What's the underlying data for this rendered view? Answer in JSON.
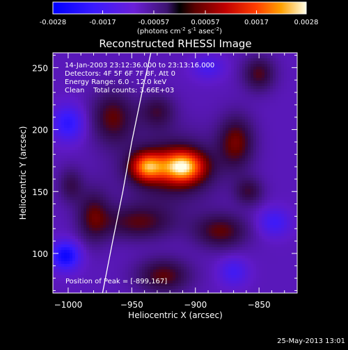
{
  "colorbar": {
    "ticks": [
      "-0.0028",
      "-0.0017",
      "-0.00057",
      "0.00057",
      "0.0017",
      "0.0028"
    ],
    "unit_prefix": "(photons cm",
    "unit_exp1": "-2",
    "unit_mid": " s",
    "unit_exp2": "-1",
    "unit_mid2": " asec",
    "unit_exp3": "-2",
    "unit_suffix": ")",
    "range": [
      -0.0028,
      0.0028
    ]
  },
  "chart_data": {
    "type": "heatmap",
    "title": "Reconstructed RHESSI Image",
    "xlabel": "Heliocentric X (arcsec)",
    "ylabel": "Heliocentric Y (arcsec)",
    "xlim": [
      -1012,
      -820
    ],
    "ylim": [
      68,
      262
    ],
    "x_ticks": [
      -1000,
      -950,
      -900,
      -850
    ],
    "y_ticks": [
      100,
      150,
      200,
      250
    ],
    "x_tick_labels": [
      "−1000",
      "−950",
      "−900",
      "−850"
    ],
    "y_tick_labels": [
      "100",
      "150",
      "200",
      "250"
    ],
    "peak": [
      -899,
      167
    ],
    "annotations": [
      "14-Jan-2003 23:12:36.000 to 23:13:16.000",
      "Detectors: 4F 5F 6F 7F 8F, Att 0",
      "Energy Range: 6.0 - 12.0 keV",
      "Clean    Total counts: 3.66E+03"
    ],
    "peak_label": "Position of Peak = [-899,167]",
    "limb_curve": [
      [
        -973,
        68
      ],
      [
        -965,
        110
      ],
      [
        -957,
        150
      ],
      [
        -950,
        190
      ],
      [
        -942,
        230
      ],
      [
        -935,
        262
      ]
    ],
    "sources": [
      {
        "x": -910,
        "y": 170,
        "sx": 12,
        "sy": 9,
        "amp": 0.0028
      },
      {
        "x": -938,
        "y": 170,
        "sx": 9,
        "sy": 8,
        "amp": 0.0023
      },
      {
        "x": -920,
        "y": 168,
        "sx": 26,
        "sy": 20,
        "amp": 0.0011
      },
      {
        "x": -965,
        "y": 210,
        "sx": 12,
        "sy": 15,
        "amp": 0.0012
      },
      {
        "x": -930,
        "y": 215,
        "sx": 10,
        "sy": 10,
        "amp": 0.0009
      },
      {
        "x": -868,
        "y": 190,
        "sx": 10,
        "sy": 15,
        "amp": 0.0013
      },
      {
        "x": -850,
        "y": 245,
        "sx": 9,
        "sy": 10,
        "amp": 0.0011
      },
      {
        "x": -858,
        "y": 150,
        "sx": 8,
        "sy": 8,
        "amp": 0.0009
      },
      {
        "x": -880,
        "y": 118,
        "sx": 15,
        "sy": 10,
        "amp": 0.0012
      },
      {
        "x": -945,
        "y": 125,
        "sx": 20,
        "sy": 10,
        "amp": 0.0011
      },
      {
        "x": -980,
        "y": 130,
        "sx": 9,
        "sy": 15,
        "amp": 0.0011
      },
      {
        "x": -925,
        "y": 82,
        "sx": 15,
        "sy": 10,
        "amp": 0.0012
      },
      {
        "x": -998,
        "y": 155,
        "sx": 7,
        "sy": 10,
        "amp": 0.0008
      },
      {
        "x": -1002,
        "y": 98,
        "sx": 8,
        "sy": 8,
        "amp": -0.0017
      },
      {
        "x": -1000,
        "y": 205,
        "sx": 9,
        "sy": 10,
        "amp": -0.0012
      },
      {
        "x": -838,
        "y": 125,
        "sx": 9,
        "sy": 8,
        "amp": -0.0009
      },
      {
        "x": -890,
        "y": 250,
        "sx": 9,
        "sy": 7,
        "amp": -0.0007
      },
      {
        "x": -870,
        "y": 85,
        "sx": 8,
        "sy": 8,
        "amp": -0.0008
      }
    ]
  },
  "footer": {
    "timestamp": "25-May-2013 13:01"
  }
}
